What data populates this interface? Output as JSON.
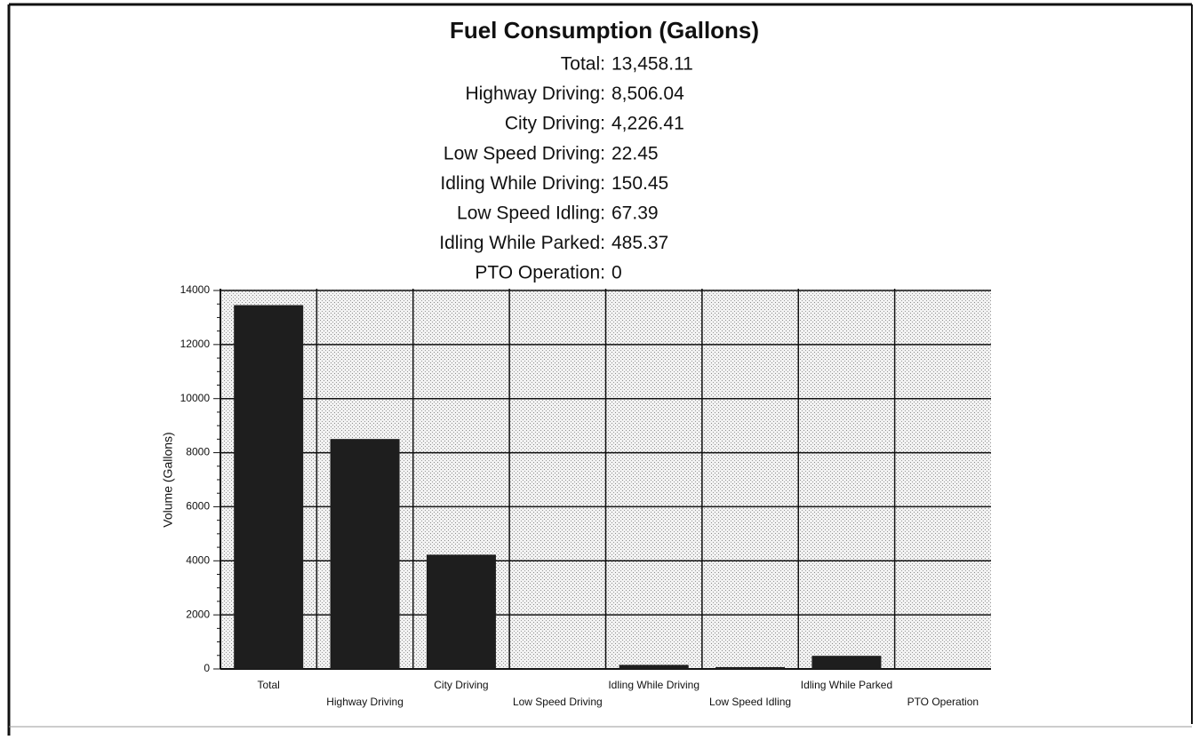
{
  "chart_data": {
    "type": "bar",
    "title": "Fuel Consumption (Gallons)",
    "summary_labels": [
      "Total:",
      "Highway Driving:",
      "City Driving:",
      "Low Speed Driving:",
      "Idling While Driving:",
      "Low Speed Idling:",
      "Idling While Parked:",
      "PTO Operation:"
    ],
    "value_labels": [
      "13,458.11",
      "8,506.04",
      "4,226.41",
      "22.45",
      "150.45",
      "67.39",
      "485.37",
      "0"
    ],
    "categories": [
      "Total",
      "Highway Driving",
      "City Driving",
      "Low Speed Driving",
      "Idling While Driving",
      "Low Speed Idling",
      "Idling While Parked",
      "PTO Operation"
    ],
    "values": [
      13458.11,
      8506.04,
      4226.41,
      22.45,
      150.45,
      67.39,
      485.37,
      0
    ],
    "color": "#1e1e1e",
    "y_label": "Volume (Gallons)",
    "ylim": [
      0,
      14000
    ],
    "yticks": [
      0,
      2000,
      4000,
      6000,
      8000,
      10000,
      12000,
      14000
    ],
    "grid": true
  }
}
